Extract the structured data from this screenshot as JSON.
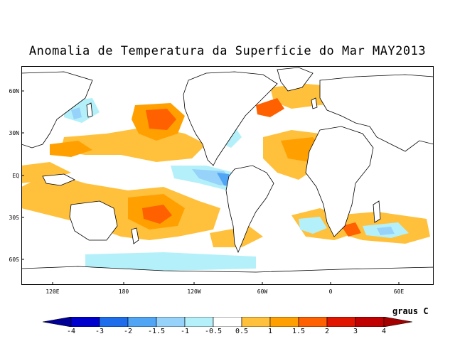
{
  "title": "Anomalia de Temperatura da Superficie do Mar MAY2013",
  "units": "graus C",
  "map": {
    "lat_labels": [
      "60N",
      "30N",
      "EQ",
      "30S",
      "60S"
    ],
    "lon_labels": [
      "120E",
      "180",
      "120W",
      "60W",
      "0",
      "60E"
    ]
  },
  "colorbar": {
    "labels": [
      "-4",
      "-3",
      "-2",
      "-1.5",
      "-1",
      "-0.5",
      "0.5",
      "1",
      "1.5",
      "2",
      "3",
      "4"
    ],
    "colors": [
      "#000096",
      "#0000cd",
      "#1e6eeb",
      "#50a5f5",
      "#96d2fa",
      "#b4f0fa",
      "#ffffff",
      "#ffc03c",
      "#ffa000",
      "#ff6000",
      "#e11400",
      "#c00000",
      "#a50000"
    ]
  },
  "colors": {
    "warm_light": "#ffc03c",
    "warm_mid": "#ffa000",
    "warm_strong": "#ff6000",
    "warm_hot": "#c00000",
    "cool_light": "#b4f0fa",
    "cool_mid": "#96d2fa",
    "cool_strong": "#50a5f5"
  }
}
